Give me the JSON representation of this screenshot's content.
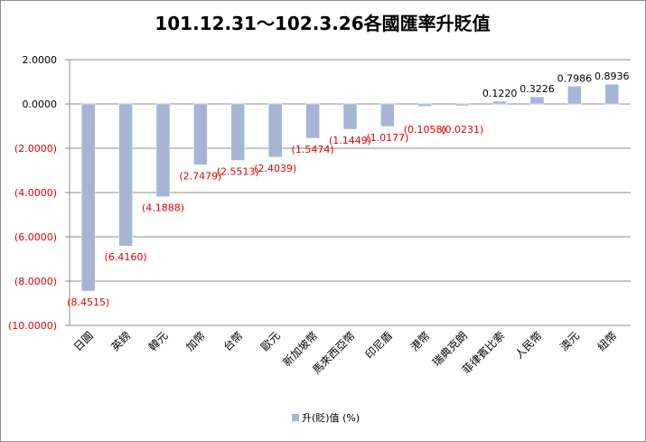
{
  "chart_data": {
    "type": "bar",
    "title": "101.12.31～102.3.26各國匯率升貶值",
    "categories": [
      "日圓",
      "英鎊",
      "韓元",
      "加幣",
      "台幣",
      "歐元",
      "新加坡幣",
      "馬來西亞幣",
      "印尼盾",
      "港幣",
      "瑞典克朗",
      "菲律賓比索",
      "人民幣",
      "澳元",
      "紐幣"
    ],
    "series": [
      {
        "name": "升(貶)值 (%)",
        "values": [
          -8.4515,
          -6.416,
          -4.1888,
          -2.7479,
          -2.5513,
          -2.4039,
          -1.5474,
          -1.1449,
          -1.0177,
          -0.1058,
          -0.0231,
          0.122,
          0.3226,
          0.7986,
          0.8936
        ],
        "labels": [
          "(8.4515)",
          "(6.4160)",
          "(4.1888)",
          "(2.7479)",
          "(2.5513)",
          "(2.4039)",
          "(1.5474)",
          "(1.1449)",
          "(1.0177)",
          "(0.1058)",
          "(0.0231)",
          "0.1220",
          "0.3226",
          "0.7986",
          "0.8936"
        ]
      }
    ],
    "y_ticks": [
      "2.0000",
      "0.0000",
      "(2.0000)",
      "(4.0000)",
      "(6.0000)",
      "(8.0000)",
      "(10.0000)"
    ],
    "ylim": [
      -10,
      2
    ],
    "grid": true,
    "legend_position": "bottom",
    "colors": {
      "bar_fill": "#a6b5d6",
      "bar_stroke": "#ffffff",
      "negative_text": "#e00000",
      "positive_text": "#000000",
      "grid": "#8c8c8c",
      "border": "#8c8c8c"
    }
  }
}
